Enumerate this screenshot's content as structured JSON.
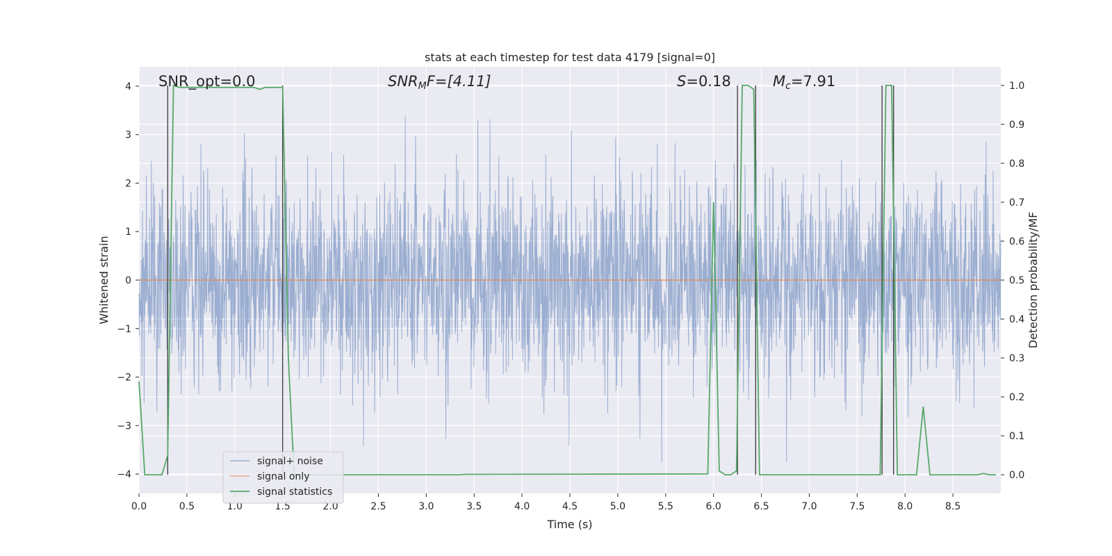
{
  "chart_data": {
    "type": "line",
    "title": "stats at each timestep for test data 4179 [signal=0]",
    "xlabel": "Time (s)",
    "ylabel": "Whitened strain",
    "ylabel_right": "Detection probability/MF",
    "xlim": [
      0.0,
      9.0
    ],
    "ylim": [
      -4.4,
      4.4
    ],
    "ylim_right": [
      -0.048,
      1.048
    ],
    "xticks": [
      "0.0",
      "0.5",
      "1.0",
      "1.5",
      "2.0",
      "2.5",
      "3.0",
      "3.5",
      "4.0",
      "4.5",
      "5.0",
      "5.5",
      "6.0",
      "6.5",
      "7.0",
      "7.5",
      "8.0",
      "8.5"
    ],
    "yticks": [
      "−4",
      "−3",
      "−2",
      "−1",
      "0",
      "1",
      "2",
      "3",
      "4"
    ],
    "yticks_right": [
      "0.0",
      "0.1",
      "0.2",
      "0.3",
      "0.4",
      "0.5",
      "0.6",
      "0.7",
      "0.8",
      "0.9",
      "1.0"
    ],
    "grid": true,
    "annotations": {
      "snr_opt": "SNR_opt=0.0",
      "snr_mf_sym": "SNR",
      "snr_mf_sub": "M",
      "snr_mf_rest": "F=[4.11]",
      "s_sym": "S",
      "s_rest": "=0.18",
      "mc_sym": "M",
      "mc_sub": "c",
      "mc_rest": "=7.91"
    },
    "legend": {
      "position": "lower-left",
      "entries": [
        "signal+ noise",
        "signal only",
        "signal statistics"
      ]
    },
    "series": [
      {
        "name": "signal+ noise",
        "axis": "left",
        "description": "whitened noise, sampled 2048 Hz, amplitude ~±2.5 with peaks to ±3.7",
        "seed": 4179,
        "sample_count": 2700,
        "amplitude_sigma": 1.05,
        "color": "#4c72b0"
      },
      {
        "name": "signal only",
        "axis": "left",
        "x": [
          0.0,
          9.0
        ],
        "y": [
          0.0,
          0.0
        ],
        "color": "#dd8452"
      },
      {
        "name": "signal statistics",
        "axis": "right",
        "color": "#55a868",
        "x": [
          0.0,
          0.06,
          0.24,
          0.3,
          0.36,
          0.42,
          0.48,
          1.2,
          1.26,
          1.32,
          1.38,
          1.5,
          1.56,
          1.62,
          1.68,
          2.0,
          3.35,
          3.4,
          5.94,
          6.0,
          6.06,
          6.12,
          6.18,
          6.24,
          6.3,
          6.36,
          6.42,
          6.48,
          6.54,
          6.6,
          7.74,
          7.8,
          7.86,
          7.92,
          7.98,
          8.12,
          8.19,
          8.26,
          8.3,
          8.75,
          8.82,
          8.88,
          8.95
        ],
        "y": [
          0.24,
          0.0,
          0.0,
          0.05,
          1.0,
          0.995,
          0.995,
          0.995,
          0.99,
          0.995,
          0.995,
          0.995,
          0.3,
          0.0,
          0.0,
          0.0,
          0.0,
          0.001,
          0.002,
          0.7,
          0.01,
          0.0,
          0.0,
          0.01,
          1.0,
          1.0,
          0.99,
          0.0,
          0.0,
          0.0,
          0.0,
          1.0,
          1.0,
          0.0,
          0.0,
          0.0,
          0.175,
          0.0,
          0.0,
          0.0,
          0.003,
          0.0,
          0.0
        ]
      }
    ],
    "vertical_markers_x": [
      0.3,
      1.5,
      6.25,
      6.44,
      7.76,
      7.88
    ]
  }
}
